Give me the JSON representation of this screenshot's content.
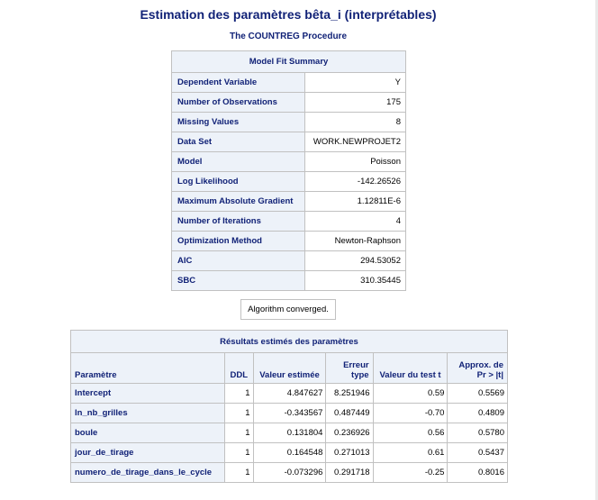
{
  "title": "Estimation des paramètres bêta_i (interprétables)",
  "subtitle": "The COUNTREG Procedure",
  "fit_summary": {
    "caption": "Model Fit Summary",
    "rows": [
      {
        "label": "Dependent Variable",
        "value": "Y"
      },
      {
        "label": "Number of Observations",
        "value": "175"
      },
      {
        "label": "Missing Values",
        "value": "8"
      },
      {
        "label": "Data Set",
        "value": "WORK.NEWPROJET2"
      },
      {
        "label": "Model",
        "value": "Poisson"
      },
      {
        "label": "Log Likelihood",
        "value": "-142.26526"
      },
      {
        "label": "Maximum Absolute Gradient",
        "value": "1.12811E-6"
      },
      {
        "label": "Number of Iterations",
        "value": "4"
      },
      {
        "label": "Optimization Method",
        "value": "Newton-Raphson"
      },
      {
        "label": "AIC",
        "value": "294.53052"
      },
      {
        "label": "SBC",
        "value": "310.35445"
      }
    ]
  },
  "convergence_note": "Algorithm converged.",
  "estimates": {
    "caption": "Résultats estimés des paramètres",
    "headers": {
      "param": "Paramètre",
      "ddl": "DDL",
      "estimate": "Valeur estimée",
      "stderr_l1": "Erreur",
      "stderr_l2": "type",
      "tval": "Valeur du test t",
      "pval_l1": "Approx. de",
      "pval_l2": "Pr > |t|"
    },
    "rows": [
      {
        "param": "Intercept",
        "ddl": "1",
        "estimate": "4.847627",
        "stderr": "8.251946",
        "tval": "0.59",
        "pval": "0.5569"
      },
      {
        "param": "ln_nb_grilles",
        "ddl": "1",
        "estimate": "-0.343567",
        "stderr": "0.487449",
        "tval": "-0.70",
        "pval": "0.4809"
      },
      {
        "param": "boule",
        "ddl": "1",
        "estimate": "0.131804",
        "stderr": "0.236926",
        "tval": "0.56",
        "pval": "0.5780"
      },
      {
        "param": "jour_de_tirage",
        "ddl": "1",
        "estimate": "0.164548",
        "stderr": "0.271013",
        "tval": "0.61",
        "pval": "0.5437"
      },
      {
        "param": "numero_de_tirage_dans_le_cycle",
        "ddl": "1",
        "estimate": "-0.073296",
        "stderr": "0.291718",
        "tval": "-0.25",
        "pval": "0.8016"
      }
    ]
  }
}
